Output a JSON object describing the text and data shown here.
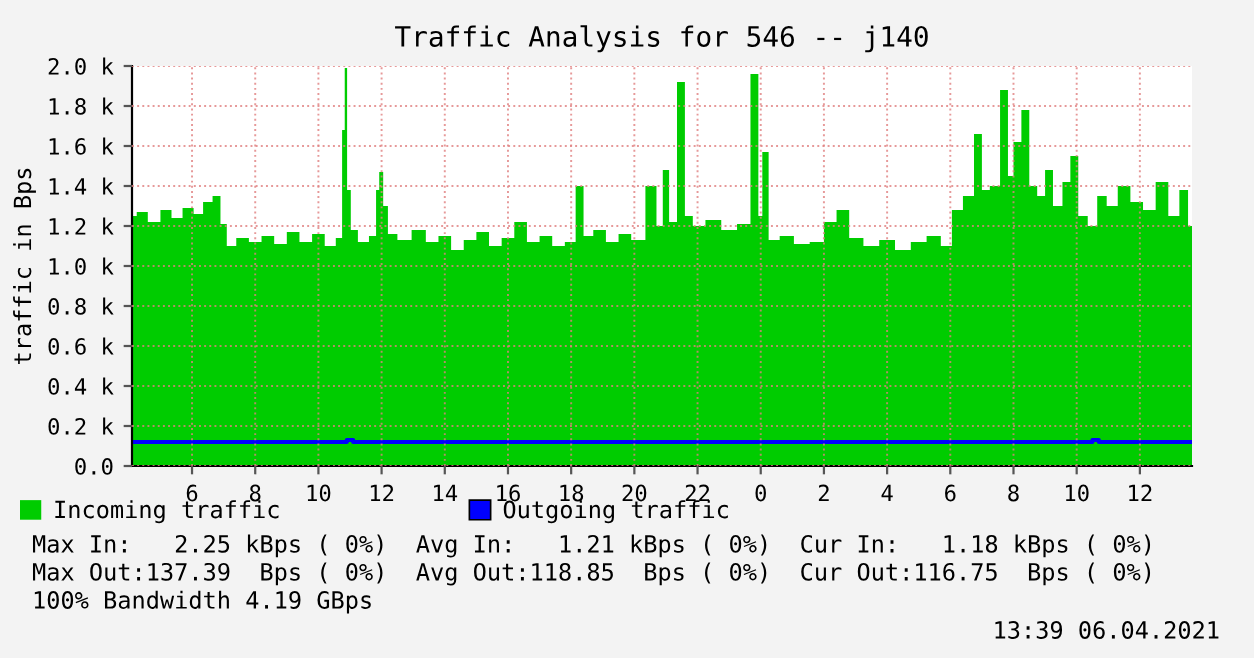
{
  "chart_data": {
    "type": "area",
    "title": "Traffic Analysis for 546 -- j140",
    "ylabel": "traffic in Bps",
    "xlim": [
      "2021-04-05T04:06",
      "2021-04-06T13:39"
    ],
    "xticks": [
      {
        "value": "2021-04-05T06:00",
        "label": "6"
      },
      {
        "value": "2021-04-05T08:00",
        "label": "8"
      },
      {
        "value": "2021-04-05T10:00",
        "label": "10"
      },
      {
        "value": "2021-04-05T12:00",
        "label": "12"
      },
      {
        "value": "2021-04-05T14:00",
        "label": "14"
      },
      {
        "value": "2021-04-05T16:00",
        "label": "16"
      },
      {
        "value": "2021-04-05T18:00",
        "label": "18"
      },
      {
        "value": "2021-04-05T20:00",
        "label": "20"
      },
      {
        "value": "2021-04-05T22:00",
        "label": "22"
      },
      {
        "value": "2021-04-06T00:00",
        "label": "0"
      },
      {
        "value": "2021-04-06T02:00",
        "label": "2"
      },
      {
        "value": "2021-04-06T04:00",
        "label": "4"
      },
      {
        "value": "2021-04-06T06:00",
        "label": "6"
      },
      {
        "value": "2021-04-06T08:00",
        "label": "8"
      },
      {
        "value": "2021-04-06T10:00",
        "label": "10"
      },
      {
        "value": "2021-04-06T12:00",
        "label": "12"
      }
    ],
    "ylim": [
      0,
      2.0
    ],
    "yticks": [
      {
        "value": 0,
        "label": "0.0"
      },
      {
        "value": 0.2,
        "label": "0.2 k"
      },
      {
        "value": 0.4,
        "label": "0.4 k"
      },
      {
        "value": 0.6,
        "label": "0.6 k"
      },
      {
        "value": 0.8,
        "label": "0.8 k"
      },
      {
        "value": 1.0,
        "label": "1.0 k"
      },
      {
        "value": 1.2,
        "label": "1.2 k"
      },
      {
        "value": 1.4,
        "label": "1.4 k"
      },
      {
        "value": 1.6,
        "label": "1.6 k"
      },
      {
        "value": 1.8,
        "label": "1.8 k"
      },
      {
        "value": 2.0,
        "label": "2.0 k"
      }
    ],
    "grid": true,
    "legend": "bottom",
    "series": [
      {
        "name": "Incoming traffic",
        "color": "#00cc00",
        "x": [
          "2021-04-05T04:06",
          "2021-04-05T04:24",
          "2021-04-05T04:48",
          "2021-04-05T05:12",
          "2021-04-05T05:30",
          "2021-04-05T05:54",
          "2021-04-05T06:12",
          "2021-04-05T06:30",
          "2021-04-05T06:48",
          "2021-04-05T07:00",
          "2021-04-05T07:12",
          "2021-04-05T07:36",
          "2021-04-05T08:00",
          "2021-04-05T08:24",
          "2021-04-05T08:48",
          "2021-04-05T09:12",
          "2021-04-05T09:36",
          "2021-04-05T10:00",
          "2021-04-05T10:24",
          "2021-04-05T10:42",
          "2021-04-05T10:48",
          "2021-04-05T10:52",
          "2021-04-05T10:57",
          "2021-04-05T11:06",
          "2021-04-05T11:24",
          "2021-04-05T11:48",
          "2021-04-05T11:51",
          "2021-04-05T12:00",
          "2021-04-05T12:06",
          "2021-04-05T12:18",
          "2021-04-05T12:42",
          "2021-04-05T13:12",
          "2021-04-05T13:36",
          "2021-04-05T14:00",
          "2021-04-05T14:24",
          "2021-04-05T14:48",
          "2021-04-05T15:12",
          "2021-04-05T15:36",
          "2021-04-05T16:00",
          "2021-04-05T16:24",
          "2021-04-05T16:48",
          "2021-04-05T17:12",
          "2021-04-05T17:36",
          "2021-04-05T18:00",
          "2021-04-05T18:17",
          "2021-04-05T18:30",
          "2021-04-05T18:54",
          "2021-04-05T19:18",
          "2021-04-05T19:42",
          "2021-04-05T20:06",
          "2021-04-05T20:36",
          "2021-04-05T20:48",
          "2021-04-05T21:00",
          "2021-04-05T21:12",
          "2021-04-05T21:30",
          "2021-04-05T21:42",
          "2021-04-05T22:00",
          "2021-04-05T22:30",
          "2021-04-05T23:00",
          "2021-04-05T23:30",
          "2021-04-05T23:51",
          "2021-04-06T00:00",
          "2021-04-06T00:06",
          "2021-04-06T00:24",
          "2021-04-06T00:48",
          "2021-04-06T01:18",
          "2021-04-06T01:48",
          "2021-04-06T02:12",
          "2021-04-06T02:36",
          "2021-04-06T03:00",
          "2021-04-06T03:30",
          "2021-04-06T04:00",
          "2021-04-06T04:30",
          "2021-04-06T05:00",
          "2021-04-06T05:30",
          "2021-04-06T05:54",
          "2021-04-06T06:12",
          "2021-04-06T06:36",
          "2021-04-06T06:54",
          "2021-04-06T07:06",
          "2021-04-06T07:24",
          "2021-04-06T07:45",
          "2021-04-06T07:54",
          "2021-04-06T08:06",
          "2021-04-06T08:24",
          "2021-04-06T08:36",
          "2021-04-06T08:54",
          "2021-04-06T09:06",
          "2021-04-06T09:24",
          "2021-04-06T09:42",
          "2021-04-06T09:54",
          "2021-04-06T10:12",
          "2021-04-06T10:30",
          "2021-04-06T10:48",
          "2021-04-06T11:06",
          "2021-04-06T11:30",
          "2021-04-06T11:54",
          "2021-04-06T12:18",
          "2021-04-06T12:42",
          "2021-04-06T13:06",
          "2021-04-06T13:24",
          "2021-04-06T13:39"
        ],
        "values": [
          1.25,
          1.27,
          1.22,
          1.28,
          1.24,
          1.29,
          1.26,
          1.32,
          1.35,
          1.21,
          1.1,
          1.14,
          1.12,
          1.15,
          1.11,
          1.17,
          1.12,
          1.16,
          1.1,
          1.14,
          1.68,
          1.99,
          1.38,
          1.18,
          1.12,
          1.15,
          1.38,
          1.47,
          1.3,
          1.16,
          1.13,
          1.18,
          1.12,
          1.15,
          1.08,
          1.13,
          1.17,
          1.1,
          1.14,
          1.22,
          1.12,
          1.15,
          1.1,
          1.12,
          1.4,
          1.15,
          1.18,
          1.12,
          1.16,
          1.13,
          1.4,
          1.2,
          1.48,
          1.22,
          1.92,
          1.25,
          1.2,
          1.23,
          1.18,
          1.21,
          1.96,
          1.25,
          1.57,
          1.13,
          1.15,
          1.11,
          1.12,
          1.22,
          1.28,
          1.14,
          1.1,
          1.13,
          1.08,
          1.12,
          1.15,
          1.1,
          1.28,
          1.35,
          1.66,
          1.38,
          1.4,
          1.88,
          1.45,
          1.62,
          1.78,
          1.4,
          1.35,
          1.48,
          1.3,
          1.42,
          1.55,
          1.25,
          1.2,
          1.35,
          1.3,
          1.4,
          1.32,
          1.28,
          1.42,
          1.25,
          1.38,
          1.2
        ]
      },
      {
        "name": "Outgoing traffic",
        "color": "#0000ff",
        "type": "line",
        "x": [
          "2021-04-05T04:06",
          "2021-04-05T08:00",
          "2021-04-05T10:48",
          "2021-04-05T11:00",
          "2021-04-05T11:12",
          "2021-04-05T16:00",
          "2021-04-05T21:00",
          "2021-04-06T00:00",
          "2021-04-06T04:00",
          "2021-04-06T08:00",
          "2021-04-06T10:24",
          "2021-04-06T10:36",
          "2021-04-06T10:48",
          "2021-04-06T13:39"
        ],
        "values": [
          0.12,
          0.12,
          0.12,
          0.13,
          0.12,
          0.12,
          0.12,
          0.12,
          0.12,
          0.12,
          0.12,
          0.13,
          0.12,
          0.12
        ]
      }
    ],
    "annotations": [
      "Max In:   2.25 kBps ( 0%)  Avg In:   1.21 kBps ( 0%)  Cur In:   1.18 kBps ( 0%)",
      "Max Out:137.39  Bps ( 0%)  Avg Out:118.85  Bps ( 0%)  Cur Out:116.75  Bps ( 0%)",
      "100% Bandwidth 4.19 GBps",
      "13:39 06.04.2021"
    ]
  }
}
